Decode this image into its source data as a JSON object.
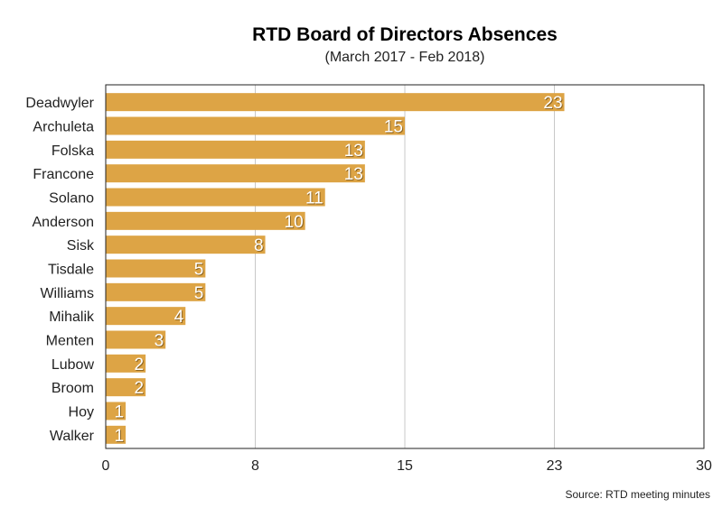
{
  "chart_data": {
    "type": "bar",
    "orientation": "horizontal",
    "title": "RTD Board of Directors Absences",
    "subtitle": "(March 2017 - Feb 2018)",
    "source": "Source: RTD meeting minutes",
    "categories": [
      "Deadwyler",
      "Archuleta",
      "Folska",
      "Francone",
      "Solano",
      "Anderson",
      "Sisk",
      "Tisdale",
      "Williams",
      "Mihalik",
      "Menten",
      "Lubow",
      "Broom",
      "Hoy",
      "Walker"
    ],
    "values": [
      23,
      15,
      13,
      13,
      11,
      10,
      8,
      5,
      5,
      4,
      3,
      2,
      2,
      1,
      1
    ],
    "xlim": [
      0,
      30
    ],
    "xticks": [
      0,
      7.5,
      15,
      22.5,
      30
    ],
    "xtick_labels": [
      "0",
      "8",
      "15",
      "23",
      "30"
    ],
    "grid": "vertical",
    "data_labels": true,
    "bar_color": "#DDA445"
  }
}
